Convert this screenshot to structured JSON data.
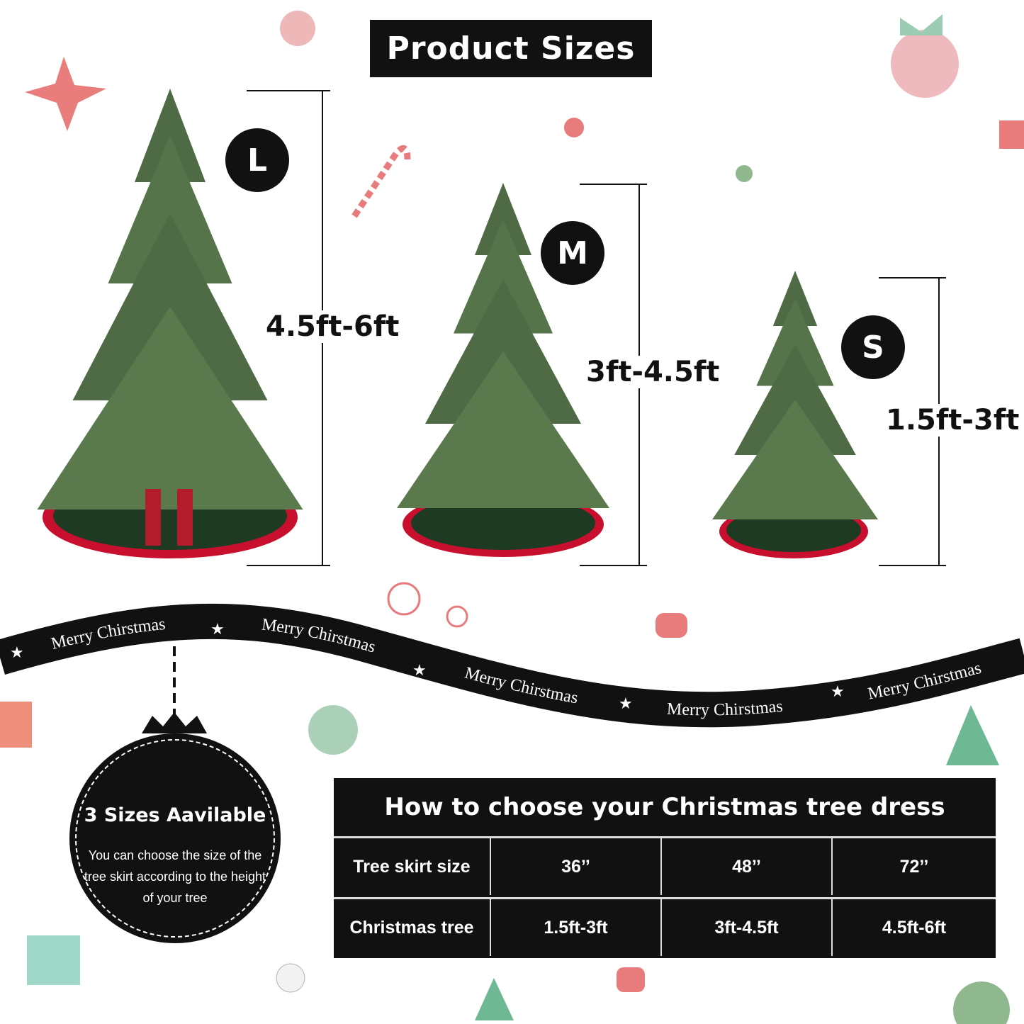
{
  "title": "Product Sizes",
  "sizes": [
    {
      "badge": "L",
      "height_label": "4.5ft-6ft"
    },
    {
      "badge": "M",
      "height_label": "3ft-4.5ft"
    },
    {
      "badge": "S",
      "height_label": "1.5ft-3ft"
    }
  ],
  "ribbon": {
    "text": "Merry Chirstmas",
    "star_icon": "star-icon"
  },
  "ornament": {
    "title": "3 Sizes Aavilable",
    "text": "You can choose the size of the tree skirt according to the height of your tree"
  },
  "table": {
    "title": "How to choose your Christmas tree dress",
    "rows": [
      {
        "label": "Tree skirt size",
        "values": [
          "36’’",
          "48’’",
          "72’’"
        ]
      },
      {
        "label": "Christmas tree",
        "values": [
          "1.5ft-3ft",
          "3ft-4.5ft",
          "4.5ft-6ft"
        ]
      }
    ]
  },
  "colors": {
    "black": "#111111",
    "tree_green": "#4f6b45",
    "skirt_red": "#c8102e",
    "skirt_green": "#1e3a22"
  }
}
